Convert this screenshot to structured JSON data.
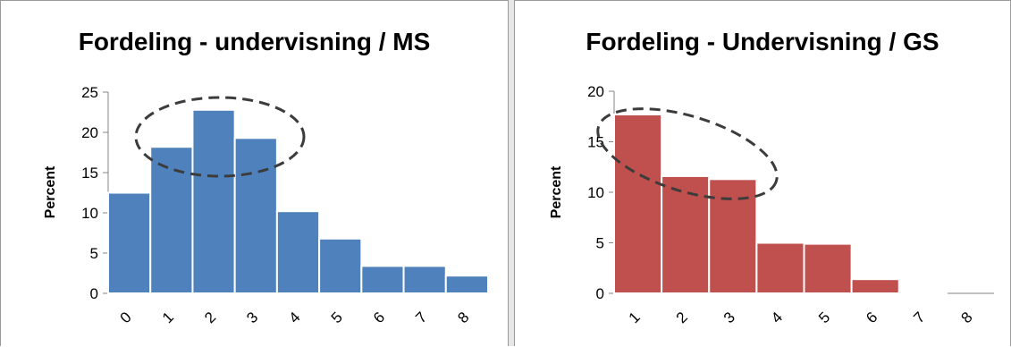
{
  "chart_data": [
    {
      "type": "bar",
      "title": "Fordeling - undervisning / MS",
      "xlabel": "",
      "ylabel": "Percent",
      "categories": [
        "0",
        "1",
        "2",
        "3",
        "4",
        "5",
        "6",
        "7",
        "8"
      ],
      "values": [
        12.5,
        18.2,
        22.8,
        19.3,
        10.2,
        6.8,
        3.4,
        3.4,
        2.2
      ],
      "ylim": [
        0,
        25
      ],
      "yticks": [
        "0",
        "5",
        "10",
        "15",
        "20",
        "25"
      ],
      "color": "#4f81bd",
      "grid": false,
      "annotation": "dashed ellipse around bars 1-3"
    },
    {
      "type": "bar",
      "title": "Fordeling - Undervisning / GS",
      "xlabel": "",
      "ylabel": "Percent",
      "categories": [
        "1",
        "2",
        "3",
        "4",
        "5",
        "6",
        "7",
        "8"
      ],
      "values": [
        17.7,
        11.6,
        11.3,
        5.0,
        4.9,
        1.4,
        0.1,
        0.0
      ],
      "ylim": [
        0,
        20
      ],
      "yticks": [
        "0",
        "5",
        "10",
        "15",
        "20"
      ],
      "color": "#c0504d",
      "grid": false,
      "annotation": "dashed ellipse around bars 1-3"
    }
  ]
}
